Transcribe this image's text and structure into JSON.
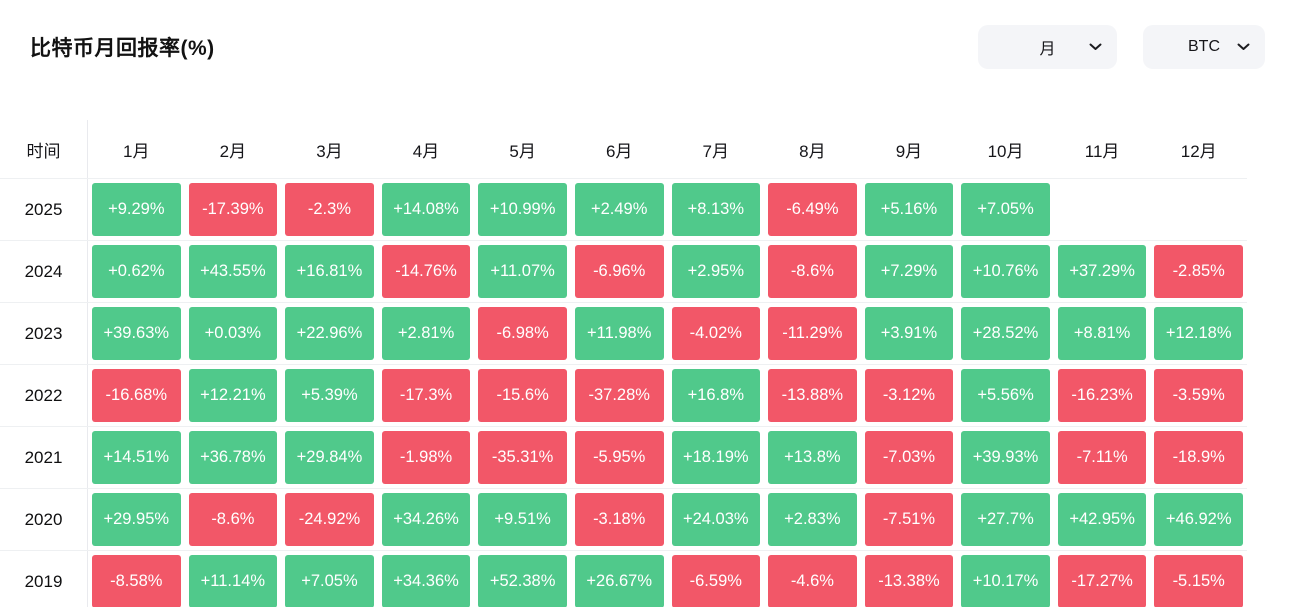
{
  "page": {
    "title": "比特币月回报率(%)"
  },
  "controls": {
    "period_dropdown": {
      "value": "月"
    },
    "asset_dropdown": {
      "value": "BTC"
    }
  },
  "chart_data": {
    "type": "heatmap",
    "title": "比特币月回报率(%)",
    "columns": [
      "时间",
      "1月",
      "2月",
      "3月",
      "4月",
      "5月",
      "6月",
      "7月",
      "8月",
      "9月",
      "10月",
      "11月",
      "12月"
    ],
    "rows": [
      {
        "year": "2025",
        "values": [
          "+9.29%",
          "-17.39%",
          "-2.3%",
          "+14.08%",
          "+10.99%",
          "+2.49%",
          "+8.13%",
          "-6.49%",
          "+5.16%",
          "+7.05%",
          "",
          ""
        ]
      },
      {
        "year": "2024",
        "values": [
          "+0.62%",
          "+43.55%",
          "+16.81%",
          "-14.76%",
          "+11.07%",
          "-6.96%",
          "+2.95%",
          "-8.6%",
          "+7.29%",
          "+10.76%",
          "+37.29%",
          "-2.85%"
        ]
      },
      {
        "year": "2023",
        "values": [
          "+39.63%",
          "+0.03%",
          "+22.96%",
          "+2.81%",
          "-6.98%",
          "+11.98%",
          "-4.02%",
          "-11.29%",
          "+3.91%",
          "+28.52%",
          "+8.81%",
          "+12.18%"
        ]
      },
      {
        "year": "2022",
        "values": [
          "-16.68%",
          "+12.21%",
          "+5.39%",
          "-17.3%",
          "-15.6%",
          "-37.28%",
          "+16.8%",
          "-13.88%",
          "-3.12%",
          "+5.56%",
          "-16.23%",
          "-3.59%"
        ]
      },
      {
        "year": "2021",
        "values": [
          "+14.51%",
          "+36.78%",
          "+29.84%",
          "-1.98%",
          "-35.31%",
          "-5.95%",
          "+18.19%",
          "+13.8%",
          "-7.03%",
          "+39.93%",
          "-7.11%",
          "-18.9%"
        ]
      },
      {
        "year": "2020",
        "values": [
          "+29.95%",
          "-8.6%",
          "-24.92%",
          "+34.26%",
          "+9.51%",
          "-3.18%",
          "+24.03%",
          "+2.83%",
          "-7.51%",
          "+27.7%",
          "+42.95%",
          "+46.92%"
        ]
      },
      {
        "year": "2019",
        "values": [
          "-8.58%",
          "+11.14%",
          "+7.05%",
          "+34.36%",
          "+52.38%",
          "+26.67%",
          "-6.59%",
          "-4.6%",
          "-13.38%",
          "+10.17%",
          "-17.27%",
          "-5.15%"
        ]
      }
    ],
    "colors": {
      "positive": "#50c98b",
      "negative": "#f25768"
    },
    "legend": "none",
    "grid": "row-separators"
  }
}
